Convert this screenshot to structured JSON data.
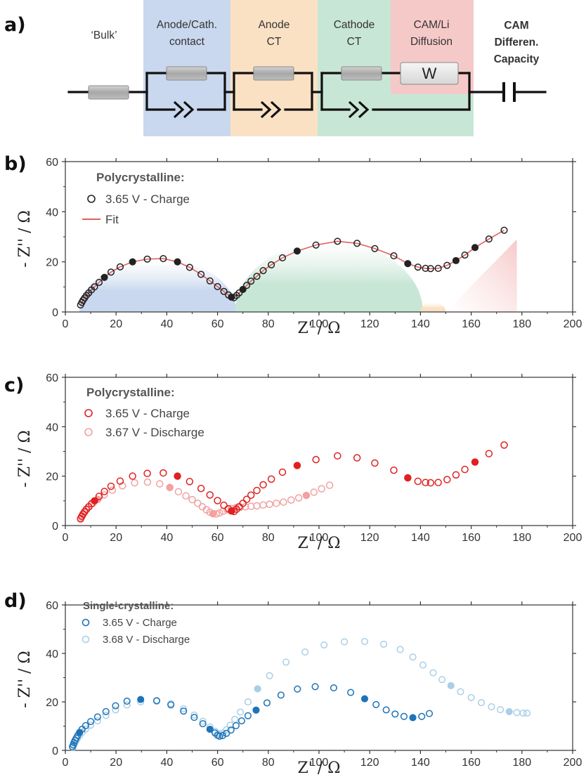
{
  "colors": {
    "bulk_zone": "#ffffff",
    "contact_zone": "#c9d8ee",
    "anode_zone": "#fbe1c4",
    "cathode_zone": "#c8e6d6",
    "diffusion_zone": "#f6c9c9",
    "fit_line": "#e06060",
    "charge_red": "#e02020",
    "discharge_red": "#f2a0a0",
    "charge_blue": "#1e73b8",
    "discharge_blue": "#a9cfe6",
    "black_marker": "#222222"
  },
  "panel_a": {
    "label": "a)",
    "zones": [
      {
        "name": "bulk",
        "lines": [
          "‘Bulk’"
        ]
      },
      {
        "name": "contact",
        "lines": [
          "Anode/Cath.",
          "contact"
        ]
      },
      {
        "name": "anode-ct",
        "lines": [
          "Anode",
          "CT"
        ]
      },
      {
        "name": "cathode-ct",
        "lines": [
          "Cathode",
          "CT"
        ]
      },
      {
        "name": "diffusion",
        "lines": [
          "CAM/Li",
          "Diffusion"
        ]
      },
      {
        "name": "capacity",
        "lines": [
          "CAM",
          "Differen.",
          "Capacity"
        ]
      }
    ],
    "warburg_label": "W"
  },
  "chart_data": [
    {
      "panel_label": "b)",
      "type": "scatter",
      "xlabel": "Z' / Ω",
      "ylabel": "- Z'' / Ω",
      "xlim": [
        0,
        200
      ],
      "ylim": [
        0,
        60
      ],
      "xticks": [
        0,
        20,
        40,
        60,
        80,
        100,
        120,
        140,
        160,
        180,
        200
      ],
      "yticks": [
        0,
        20,
        40,
        60
      ],
      "legend_title": "Polycrystalline:",
      "legend_entries": [
        "3.65 V - Charge",
        "Fit"
      ],
      "shaded_regions": [
        {
          "name": "anode-contact-arc",
          "center": 36.5,
          "radius": 31,
          "peak": 21
        },
        {
          "name": "cathode-ct-arc",
          "center": 104,
          "radius": 37,
          "peak": 28
        },
        {
          "name": "diffusion-bump",
          "center": 145,
          "radius": 5,
          "peak": 4
        },
        {
          "name": "capacity-ramp",
          "x": [
            150,
            178,
            178
          ],
          "y": [
            0,
            0,
            29
          ]
        }
      ],
      "series": [
        {
          "name": "3.65 V - Charge",
          "marker": "open-circle",
          "color": "#222222",
          "x": [
            6.0,
            6.5,
            7.0,
            7.6,
            8.3,
            9.2,
            10.3,
            11.5,
            13.3,
            15.4,
            18.0,
            21.6,
            26.5,
            32.3,
            38.6,
            44.2,
            49.0,
            53.5,
            57.0,
            60.0,
            62.5,
            64.3,
            65.5,
            66.5,
            67.5,
            68.5,
            70.0,
            71.5,
            73.2,
            75.5,
            78.0,
            81.2,
            85.6,
            91.4,
            98.8,
            107.3,
            115.0,
            122.0,
            129.5,
            135.0,
            139.0,
            142.0,
            144.0,
            147.0,
            150.5,
            154.0,
            157.5,
            161.5,
            167.0,
            173.0
          ],
          "y": [
            2.8,
            3.8,
            4.7,
            5.6,
            6.6,
            7.6,
            8.8,
            10.0,
            11.8,
            13.8,
            15.9,
            18.0,
            20.0,
            21.1,
            21.3,
            20.0,
            17.8,
            15.0,
            12.4,
            10.1,
            8.2,
            6.8,
            5.9,
            5.7,
            6.6,
            7.6,
            9.0,
            10.6,
            12.3,
            14.2,
            16.5,
            18.8,
            21.6,
            24.3,
            26.7,
            28.2,
            27.4,
            25.3,
            22.4,
            19.3,
            17.9,
            17.4,
            17.3,
            17.4,
            18.6,
            20.5,
            22.7,
            25.7,
            29.1,
            32.6
          ],
          "filled_indices": [
            9,
            12,
            15,
            22,
            26,
            33,
            39,
            45,
            47
          ]
        },
        {
          "name": "Fit",
          "marker": "line",
          "color": "#e06060",
          "x": [
            6.0,
            6.5,
            7.0,
            7.6,
            8.3,
            9.2,
            10.3,
            11.5,
            13.3,
            15.4,
            18.0,
            21.6,
            26.5,
            32.3,
            38.6,
            44.2,
            49.0,
            53.5,
            57.0,
            60.0,
            62.5,
            64.3,
            65.5,
            66.5,
            67.5,
            68.5,
            70.0,
            71.5,
            73.2,
            75.5,
            78.0,
            81.2,
            85.6,
            91.4,
            98.8,
            107.3,
            115.0,
            122.0,
            129.5,
            135.0,
            139.0,
            142.0,
            144.0,
            147.0,
            150.5,
            154.0,
            157.5,
            161.5,
            167.0,
            173.0
          ],
          "y": [
            2.8,
            3.8,
            4.7,
            5.6,
            6.6,
            7.6,
            8.8,
            10.0,
            11.8,
            13.8,
            15.9,
            18.0,
            20.0,
            21.1,
            21.3,
            20.0,
            17.8,
            15.0,
            12.4,
            10.1,
            8.2,
            6.8,
            5.9,
            5.7,
            6.6,
            7.6,
            9.0,
            10.6,
            12.3,
            14.2,
            16.5,
            18.8,
            21.6,
            24.3,
            26.7,
            28.2,
            27.4,
            25.3,
            22.4,
            19.3,
            17.9,
            17.4,
            17.3,
            17.4,
            18.6,
            20.5,
            22.7,
            25.7,
            29.1,
            32.6
          ]
        }
      ]
    },
    {
      "panel_label": "c)",
      "type": "scatter",
      "xlabel": "Z' / Ω",
      "ylabel": "- Z'' / Ω",
      "xlim": [
        0,
        200
      ],
      "ylim": [
        0,
        60
      ],
      "xticks": [
        0,
        20,
        40,
        60,
        80,
        100,
        120,
        140,
        160,
        180,
        200
      ],
      "yticks": [
        0,
        20,
        40,
        60
      ],
      "legend_title": "Polycrystalline:",
      "legend_entries": [
        "3.65 V - Charge",
        "3.67 V - Discharge"
      ],
      "series": [
        {
          "name": "3.65 V - Charge",
          "marker": "open-circle",
          "color": "#e02020",
          "x": [
            6.0,
            6.5,
            7.0,
            7.6,
            8.3,
            9.2,
            10.3,
            11.5,
            13.3,
            15.4,
            18.0,
            21.6,
            26.5,
            32.3,
            38.6,
            44.2,
            49.0,
            53.5,
            57.0,
            60.0,
            62.5,
            64.3,
            65.5,
            66.5,
            67.5,
            68.5,
            70.0,
            71.5,
            73.2,
            75.5,
            78.0,
            81.2,
            85.6,
            91.4,
            98.8,
            107.3,
            115.0,
            122.0,
            129.5,
            135.0,
            139.0,
            142.0,
            144.0,
            147.0,
            150.5,
            154.0,
            157.5,
            161.5,
            167.0,
            173.0
          ],
          "y": [
            2.8,
            3.8,
            4.7,
            5.6,
            6.6,
            7.6,
            8.8,
            10.0,
            11.8,
            13.8,
            15.9,
            18.0,
            20.0,
            21.1,
            21.3,
            20.0,
            17.8,
            15.0,
            12.4,
            10.1,
            8.2,
            6.8,
            5.9,
            5.7,
            6.6,
            7.6,
            9.0,
            10.6,
            12.3,
            14.2,
            16.5,
            18.8,
            21.6,
            24.3,
            26.7,
            28.2,
            27.4,
            25.3,
            22.4,
            19.3,
            17.9,
            17.4,
            17.3,
            17.4,
            18.6,
            20.5,
            22.7,
            25.7,
            29.1,
            32.6
          ],
          "filled_indices": [
            7,
            15,
            22,
            33,
            39,
            47
          ]
        },
        {
          "name": "3.67 V - Discharge",
          "marker": "open-circle",
          "color": "#f2a0a0",
          "x": [
            6.0,
            6.4,
            6.9,
            7.5,
            8.3,
            9.4,
            10.9,
            12.8,
            15.3,
            18.5,
            22.5,
            27.3,
            32.4,
            37.2,
            41.2,
            44.6,
            47.5,
            50.0,
            52.2,
            54.0,
            55.6,
            57.0,
            58.2,
            59.5,
            60.8,
            62.2,
            63.8,
            65.5,
            67.2,
            69.0,
            71.0,
            73.2,
            75.5,
            78.0,
            80.5,
            83.2,
            86.0,
            89.0,
            92.0,
            95.0,
            98.0,
            101.0,
            104.2
          ],
          "y": [
            2.6,
            3.4,
            4.3,
            5.3,
            6.4,
            7.6,
            9.0,
            10.6,
            12.4,
            14.3,
            16.1,
            17.3,
            17.6,
            16.9,
            15.4,
            13.7,
            12.0,
            10.5,
            9.0,
            7.6,
            6.4,
            5.4,
            4.8,
            4.7,
            5.1,
            5.8,
            6.4,
            6.9,
            7.2,
            7.4,
            7.6,
            7.8,
            8.0,
            8.3,
            8.6,
            9.0,
            9.5,
            10.3,
            11.2,
            12.2,
            13.5,
            14.9,
            16.3
          ],
          "filled_indices": [
            7,
            14,
            22,
            28,
            39
          ]
        }
      ]
    },
    {
      "panel_label": "d)",
      "type": "scatter",
      "xlabel": "Z' / Ω",
      "ylabel": "- Z'' / Ω",
      "xlim": [
        0,
        200
      ],
      "ylim": [
        0,
        60
      ],
      "xticks": [
        0,
        20,
        40,
        60,
        80,
        100,
        120,
        140,
        160,
        180,
        200
      ],
      "yticks": [
        0,
        20,
        40,
        60
      ],
      "legend_title": "Single-crystalline:",
      "legend_entries": [
        "3.65 V - Charge",
        "3.68 V - Discharge"
      ],
      "series": [
        {
          "name": "3.65 V - Charge",
          "marker": "open-circle",
          "color": "#1e73b8",
          "x": [
            2.8,
            3.1,
            3.4,
            3.8,
            4.3,
            4.9,
            5.6,
            6.6,
            8.0,
            10.0,
            12.7,
            16.0,
            19.8,
            24.3,
            29.7,
            36.0,
            41.6,
            46.6,
            50.8,
            54.2,
            57.0,
            59.0,
            60.0,
            60.8,
            62.0,
            63.5,
            65.3,
            67.3,
            69.5,
            72.0,
            75.2,
            79.5,
            85.0,
            91.5,
            98.5,
            105.8,
            112.5,
            118.0,
            122.5,
            126.5,
            130.0,
            133.5,
            137.0,
            140.5,
            143.5
          ],
          "y": [
            1.5,
            2.3,
            3.2,
            4.1,
            5.1,
            6.2,
            7.4,
            8.7,
            10.2,
            11.9,
            13.8,
            16.0,
            18.4,
            20.3,
            21.0,
            20.5,
            18.8,
            16.2,
            13.6,
            11.0,
            8.7,
            7.2,
            6.2,
            5.8,
            6.1,
            7.0,
            8.4,
            10.2,
            12.2,
            14.3,
            16.6,
            19.6,
            22.8,
            25.3,
            26.3,
            25.8,
            23.9,
            21.3,
            18.9,
            16.7,
            15.0,
            14.0,
            13.5,
            14.0,
            15.2
          ],
          "filled_indices": [
            6,
            14,
            20,
            30,
            37,
            42
          ]
        },
        {
          "name": "3.68 V - Discharge",
          "marker": "open-circle",
          "color": "#a9cfe6",
          "x": [
            3.0,
            3.3,
            3.7,
            4.2,
            4.8,
            5.6,
            6.6,
            8.0,
            10.0,
            12.7,
            16.0,
            19.8,
            24.3,
            29.7,
            36.0,
            41.6,
            46.6,
            50.8,
            54.2,
            57.0,
            59.0,
            60.2,
            61.2,
            62.2,
            63.5,
            65.0,
            66.8,
            69.0,
            72.0,
            75.8,
            80.5,
            87.0,
            94.5,
            102.0,
            110.0,
            118.0,
            125.5,
            132.0,
            137.0,
            141.0,
            145.0,
            148.5,
            152.0,
            155.8,
            160.0,
            164.0,
            168.0,
            171.5,
            175.0,
            178.0,
            180.5,
            182.0
          ],
          "y": [
            1.2,
            2.0,
            2.9,
            3.8,
            4.9,
            6.1,
            7.4,
            8.8,
            10.4,
            12.2,
            14.4,
            16.7,
            18.7,
            20.0,
            20.3,
            19.3,
            17.2,
            14.6,
            12.0,
            9.7,
            7.9,
            6.9,
            6.7,
            7.2,
            8.5,
            10.4,
            12.8,
            15.8,
            20.0,
            25.4,
            30.8,
            36.4,
            40.6,
            43.5,
            44.8,
            44.9,
            43.8,
            41.6,
            38.5,
            35.2,
            32.0,
            29.2,
            26.7,
            24.2,
            21.8,
            19.7,
            18.0,
            16.8,
            16.0,
            15.6,
            15.4,
            15.4
          ],
          "filled_indices": [
            29,
            42,
            48
          ]
        }
      ]
    }
  ]
}
